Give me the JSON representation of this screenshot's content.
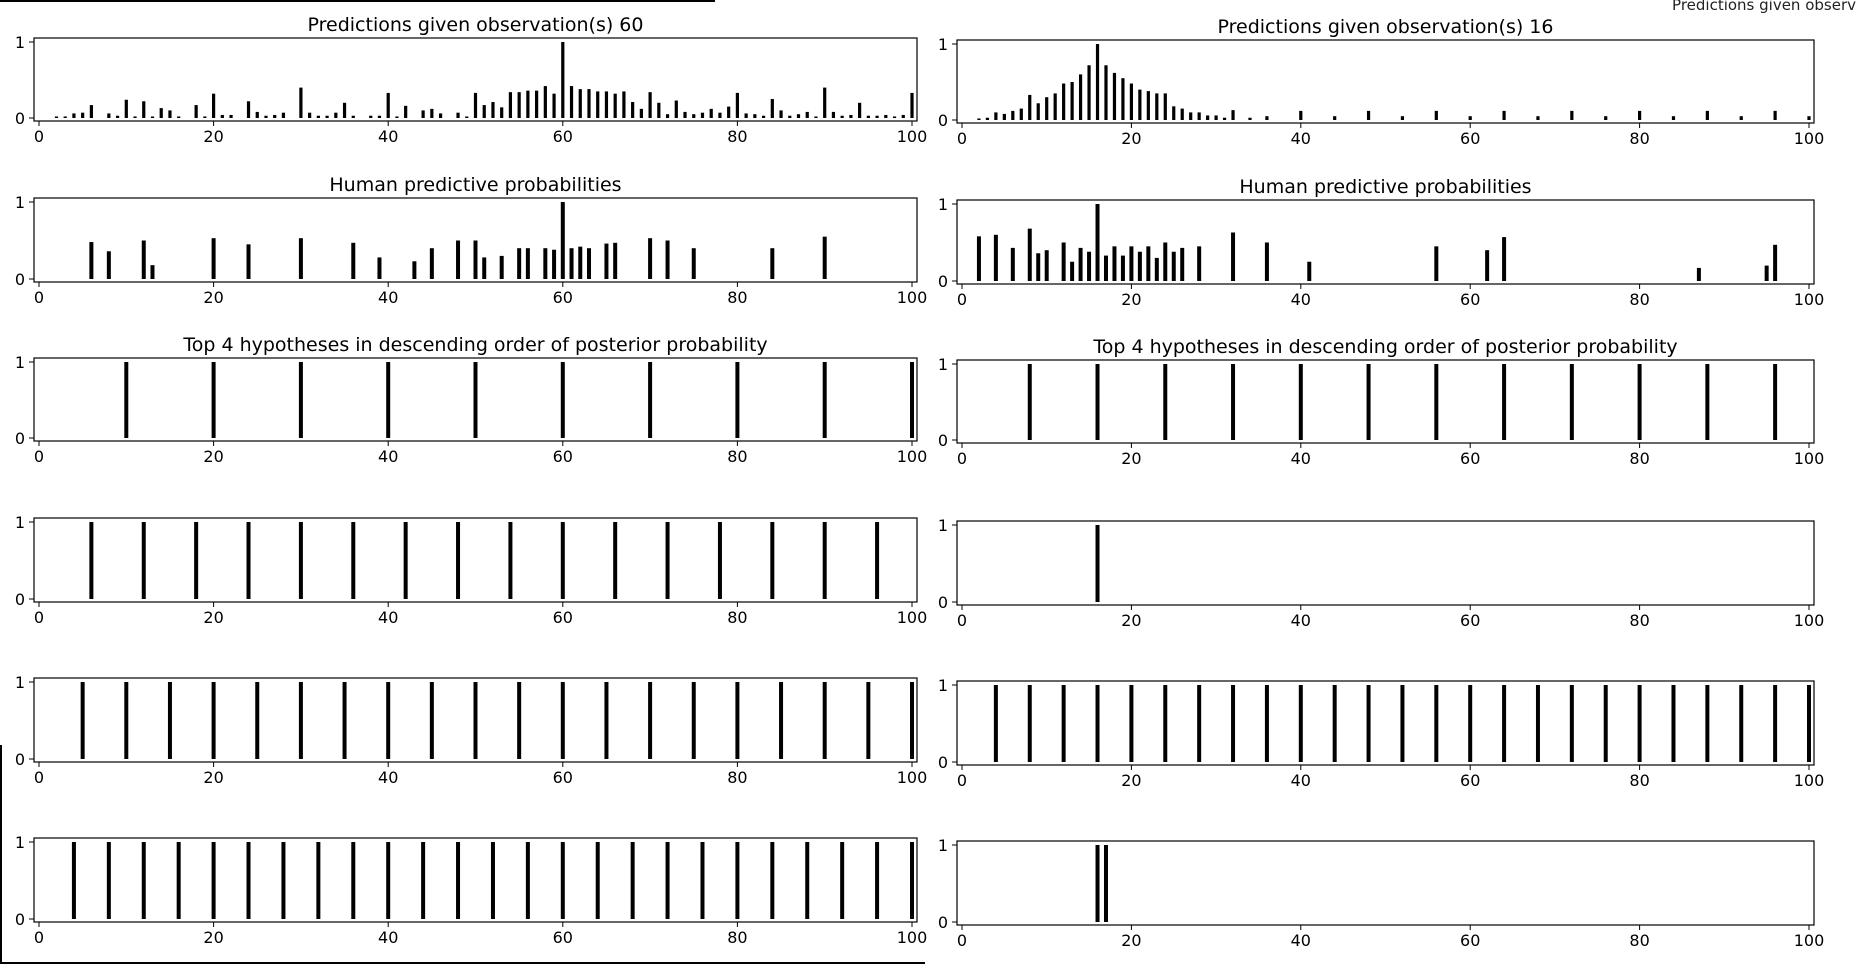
{
  "clipped_text": "Predictions given observ",
  "panels": {
    "left": [
      {
        "title": "Predictions given observation(s) 60"
      },
      {
        "title": "Human predictive probabilities"
      },
      {
        "title": "Top 4 hypotheses in descending order of posterior probability"
      },
      {
        "title": ""
      },
      {
        "title": ""
      },
      {
        "title": ""
      }
    ],
    "right": [
      {
        "title": "Predictions given observation(s) 16"
      },
      {
        "title": "Human predictive probabilities"
      },
      {
        "title": "Top 4 hypotheses in descending order of posterior probability"
      },
      {
        "title": ""
      },
      {
        "title": ""
      },
      {
        "title": ""
      }
    ]
  },
  "chart_data": [
    {
      "type": "bar",
      "title": "Predictions given observation(s) 60",
      "xlim": [
        0,
        100
      ],
      "ylim": [
        0,
        1
      ],
      "xticks": [
        0,
        20,
        40,
        60,
        80,
        100
      ],
      "yticks": [
        0,
        1
      ],
      "x": [
        2,
        3,
        4,
        5,
        6,
        8,
        9,
        10,
        11,
        12,
        13,
        14,
        15,
        16,
        18,
        19,
        20,
        21,
        22,
        24,
        25,
        26,
        27,
        28,
        30,
        31,
        32,
        33,
        34,
        35,
        36,
        38,
        39,
        40,
        41,
        42,
        44,
        45,
        46,
        48,
        49,
        50,
        51,
        52,
        53,
        54,
        55,
        56,
        57,
        58,
        59,
        60,
        61,
        62,
        63,
        64,
        65,
        66,
        67,
        68,
        69,
        70,
        71,
        72,
        73,
        74,
        75,
        76,
        77,
        78,
        79,
        80,
        81,
        82,
        83,
        84,
        85,
        86,
        87,
        88,
        89,
        90,
        91,
        92,
        93,
        94,
        95,
        96,
        97,
        98,
        99,
        100
      ],
      "values": [
        0.02,
        0.02,
        0.06,
        0.07,
        0.17,
        0.06,
        0.03,
        0.24,
        0.02,
        0.22,
        0.02,
        0.13,
        0.1,
        0.02,
        0.17,
        0.02,
        0.32,
        0.04,
        0.04,
        0.22,
        0.08,
        0.03,
        0.04,
        0.07,
        0.4,
        0.07,
        0.03,
        0.03,
        0.07,
        0.2,
        0.03,
        0.03,
        0.03,
        0.33,
        0.02,
        0.16,
        0.1,
        0.12,
        0.06,
        0.07,
        0.02,
        0.33,
        0.17,
        0.21,
        0.14,
        0.34,
        0.34,
        0.36,
        0.36,
        0.42,
        0.32,
        1.0,
        0.42,
        0.38,
        0.38,
        0.35,
        0.35,
        0.32,
        0.35,
        0.21,
        0.12,
        0.34,
        0.2,
        0.05,
        0.23,
        0.08,
        0.05,
        0.07,
        0.12,
        0.07,
        0.15,
        0.33,
        0.06,
        0.05,
        0.03,
        0.25,
        0.1,
        0.03,
        0.05,
        0.08,
        0.02,
        0.4,
        0.08,
        0.03,
        0.04,
        0.2,
        0.03,
        0.03,
        0.04,
        0.02,
        0.04,
        0.33
      ]
    },
    {
      "type": "bar",
      "title": "Predictions given observation(s) 16",
      "xlim": [
        0,
        100
      ],
      "ylim": [
        0,
        1
      ],
      "xticks": [
        0,
        20,
        40,
        60,
        80,
        100
      ],
      "yticks": [
        0,
        1
      ],
      "x": [
        2,
        3,
        4,
        5,
        6,
        7,
        8,
        9,
        10,
        11,
        12,
        13,
        14,
        15,
        16,
        17,
        18,
        19,
        20,
        21,
        22,
        23,
        24,
        25,
        26,
        27,
        28,
        29,
        30,
        31,
        32,
        34,
        36,
        40,
        44,
        48,
        52,
        56,
        60,
        64,
        68,
        72,
        76,
        80,
        84,
        88,
        92,
        96,
        100
      ],
      "values": [
        0.02,
        0.03,
        0.1,
        0.08,
        0.12,
        0.15,
        0.33,
        0.22,
        0.3,
        0.35,
        0.48,
        0.5,
        0.6,
        0.72,
        1.0,
        0.72,
        0.62,
        0.55,
        0.48,
        0.4,
        0.38,
        0.35,
        0.35,
        0.18,
        0.15,
        0.1,
        0.1,
        0.06,
        0.06,
        0.03,
        0.13,
        0.03,
        0.05,
        0.12,
        0.05,
        0.12,
        0.05,
        0.12,
        0.05,
        0.12,
        0.05,
        0.12,
        0.05,
        0.12,
        0.05,
        0.12,
        0.05,
        0.12,
        0.05
      ]
    },
    {
      "type": "bar",
      "title": "Human predictive probabilities",
      "xlim": [
        0,
        100
      ],
      "ylim": [
        0,
        1
      ],
      "xticks": [
        0,
        20,
        40,
        60,
        80,
        100
      ],
      "yticks": [
        0,
        1
      ],
      "x": [
        6,
        8,
        12,
        13,
        20,
        24,
        30,
        36,
        39,
        43,
        45,
        48,
        50,
        51,
        53,
        55,
        56,
        58,
        59,
        60,
        61,
        62,
        63,
        65,
        66,
        70,
        72,
        75,
        84,
        90
      ],
      "values": [
        0.48,
        0.36,
        0.5,
        0.18,
        0.53,
        0.45,
        0.53,
        0.47,
        0.28,
        0.23,
        0.4,
        0.5,
        0.5,
        0.28,
        0.3,
        0.4,
        0.4,
        0.4,
        0.38,
        1.0,
        0.4,
        0.42,
        0.4,
        0.46,
        0.47,
        0.53,
        0.5,
        0.4,
        0.4,
        0.55
      ]
    },
    {
      "type": "bar",
      "title": "Human predictive probabilities",
      "xlim": [
        0,
        100
      ],
      "ylim": [
        0,
        1
      ],
      "xticks": [
        0,
        20,
        40,
        60,
        80,
        100
      ],
      "yticks": [
        0,
        1
      ],
      "x": [
        2,
        4,
        6,
        8,
        9,
        10,
        12,
        13,
        14,
        15,
        16,
        17,
        18,
        19,
        20,
        21,
        22,
        23,
        24,
        25,
        26,
        28,
        32,
        36,
        41,
        56,
        62,
        64,
        87,
        95,
        96
      ],
      "values": [
        0.58,
        0.6,
        0.43,
        0.68,
        0.36,
        0.4,
        0.5,
        0.25,
        0.43,
        0.38,
        1.0,
        0.33,
        0.45,
        0.33,
        0.45,
        0.38,
        0.45,
        0.3,
        0.5,
        0.38,
        0.43,
        0.45,
        0.63,
        0.5,
        0.25,
        0.45,
        0.4,
        0.57,
        0.17,
        0.2,
        0.47
      ]
    },
    {
      "type": "bar",
      "title": "Top 4 hypotheses in descending order of posterior probability",
      "xlim": [
        0,
        100
      ],
      "ylim": [
        0,
        1
      ],
      "xticks": [
        0,
        20,
        40,
        60,
        80,
        100
      ],
      "yticks": [
        0,
        1
      ],
      "x": [
        10,
        20,
        30,
        40,
        50,
        60,
        70,
        80,
        90,
        100
      ],
      "values": [
        1,
        1,
        1,
        1,
        1,
        1,
        1,
        1,
        1,
        1
      ]
    },
    {
      "type": "bar",
      "title": "Top 4 hypotheses in descending order of posterior probability",
      "xlim": [
        0,
        100
      ],
      "ylim": [
        0,
        1
      ],
      "xticks": [
        0,
        20,
        40,
        60,
        80,
        100
      ],
      "yticks": [
        0,
        1
      ],
      "x": [
        8,
        16,
        24,
        32,
        40,
        48,
        56,
        64,
        72,
        80,
        88,
        96
      ],
      "values": [
        1,
        1,
        1,
        1,
        1,
        1,
        1,
        1,
        1,
        1,
        1,
        1
      ]
    },
    {
      "type": "bar",
      "xlim": [
        0,
        100
      ],
      "ylim": [
        0,
        1
      ],
      "xticks": [
        0,
        20,
        40,
        60,
        80,
        100
      ],
      "yticks": [
        0,
        1
      ],
      "x": [
        6,
        12,
        18,
        24,
        30,
        36,
        42,
        48,
        54,
        60,
        66,
        72,
        78,
        84,
        90,
        96
      ],
      "values": [
        1,
        1,
        1,
        1,
        1,
        1,
        1,
        1,
        1,
        1,
        1,
        1,
        1,
        1,
        1,
        1
      ]
    },
    {
      "type": "bar",
      "xlim": [
        0,
        100
      ],
      "ylim": [
        0,
        1
      ],
      "xticks": [
        0,
        20,
        40,
        60,
        80,
        100
      ],
      "yticks": [
        0,
        1
      ],
      "x": [
        16
      ],
      "values": [
        1
      ]
    },
    {
      "type": "bar",
      "xlim": [
        0,
        100
      ],
      "ylim": [
        0,
        1
      ],
      "xticks": [
        0,
        20,
        40,
        60,
        80,
        100
      ],
      "yticks": [
        0,
        1
      ],
      "x": [
        5,
        10,
        15,
        20,
        25,
        30,
        35,
        40,
        45,
        50,
        55,
        60,
        65,
        70,
        75,
        80,
        85,
        90,
        95,
        100
      ],
      "values": [
        1,
        1,
        1,
        1,
        1,
        1,
        1,
        1,
        1,
        1,
        1,
        1,
        1,
        1,
        1,
        1,
        1,
        1,
        1,
        1
      ]
    },
    {
      "type": "bar",
      "xlim": [
        0,
        100
      ],
      "ylim": [
        0,
        1
      ],
      "xticks": [
        0,
        20,
        40,
        60,
        80,
        100
      ],
      "yticks": [
        0,
        1
      ],
      "x": [
        4,
        8,
        12,
        16,
        20,
        24,
        28,
        32,
        36,
        40,
        44,
        48,
        52,
        56,
        60,
        64,
        68,
        72,
        76,
        80,
        84,
        88,
        92,
        96,
        100
      ],
      "values": [
        1,
        1,
        1,
        1,
        1,
        1,
        1,
        1,
        1,
        1,
        1,
        1,
        1,
        1,
        1,
        1,
        1,
        1,
        1,
        1,
        1,
        1,
        1,
        1,
        1
      ]
    },
    {
      "type": "bar",
      "xlim": [
        0,
        100
      ],
      "ylim": [
        0,
        1
      ],
      "xticks": [
        0,
        20,
        40,
        60,
        80,
        100
      ],
      "yticks": [
        0,
        1
      ],
      "x": [
        4,
        8,
        12,
        16,
        20,
        24,
        28,
        32,
        36,
        40,
        44,
        48,
        52,
        56,
        60,
        64,
        68,
        72,
        76,
        80,
        84,
        88,
        92,
        96,
        100
      ],
      "values": [
        1,
        1,
        1,
        1,
        1,
        1,
        1,
        1,
        1,
        1,
        1,
        1,
        1,
        1,
        1,
        1,
        1,
        1,
        1,
        1,
        1,
        1,
        1,
        1,
        1
      ]
    },
    {
      "type": "bar",
      "xlim": [
        0,
        100
      ],
      "ylim": [
        0,
        1
      ],
      "xticks": [
        0,
        20,
        40,
        60,
        80,
        100
      ],
      "yticks": [
        0,
        1
      ],
      "x": [
        16,
        17
      ],
      "values": [
        1,
        1
      ]
    }
  ]
}
